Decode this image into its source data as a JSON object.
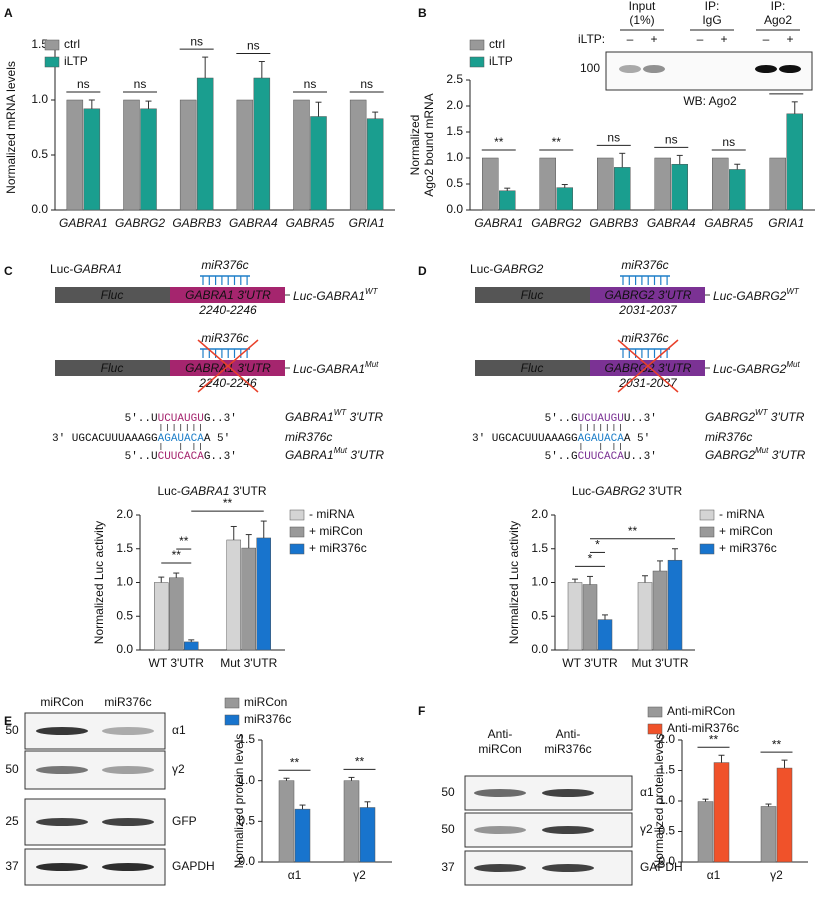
{
  "panels": {
    "labels": [
      "A",
      "B",
      "C",
      "D",
      "E",
      "F"
    ]
  },
  "chart_data": [
    {
      "type": "bar",
      "ylabel": [
        "Normalized mRNA levels"
      ],
      "categories": [
        "GABRA1",
        "GABRG2",
        "GABRB3",
        "GABRA4",
        "GABRA5",
        "GRIA1"
      ],
      "series": [
        {
          "name": "ctrl",
          "color": "#999999",
          "values": [
            1,
            1,
            1,
            1,
            1,
            1
          ]
        },
        {
          "name": "iLTP",
          "color": "#1a9e8f",
          "values": [
            0.92,
            0.92,
            1.2,
            1.2,
            0.85,
            0.83
          ],
          "errors": [
            0.08,
            0.07,
            0.19,
            0.15,
            0.13,
            0.06
          ]
        }
      ],
      "ylim": [
        0,
        1.5
      ],
      "yticks": [
        {
          "value": 0,
          "label": "0.0"
        },
        0.5,
        {
          "value": 1,
          "label": "1.0"
        },
        1.5
      ],
      "legend": "upper left",
      "significance": [
        "ns",
        "ns",
        "ns",
        "ns",
        "ns",
        "ns"
      ]
    },
    {
      "type": "bar",
      "ylabel": [
        "Normalized",
        "Ago2 bound mRNA"
      ],
      "categories": [
        "GABRA1",
        "GABRG2",
        "GABRB3",
        "GABRA4",
        "GABRA5",
        "GRIA1"
      ],
      "series": [
        {
          "name": "ctrl",
          "color": "#999999",
          "values": [
            1,
            1,
            1,
            1,
            1,
            1
          ]
        },
        {
          "name": "iLTP",
          "color": "#1a9e8f",
          "values": [
            0.37,
            0.43,
            0.82,
            0.88,
            0.78,
            1.85
          ],
          "errors": [
            0.05,
            0.06,
            0.27,
            0.17,
            0.1,
            0.23
          ]
        }
      ],
      "ylim": [
        0,
        2.5
      ],
      "yticks": [
        {
          "value": 0,
          "label": "0.0"
        },
        0.5,
        {
          "value": 1,
          "label": "1.0"
        },
        1.5,
        {
          "value": 2,
          "label": "2.0"
        },
        2.5
      ],
      "legend": "upper left",
      "significance": [
        "**",
        "**",
        "ns",
        "ns",
        "ns",
        "*"
      ]
    },
    {
      "type": "bar",
      "title": [
        "Luc-",
        "GABRA1",
        " 3'UTR"
      ],
      "ylabel": [
        "Normalized Luc activity"
      ],
      "categories": [
        "WT 3'UTR",
        "Mut 3'UTR"
      ],
      "series": [
        {
          "name": "- miRNA",
          "color": "#d4d4d4",
          "values": [
            1.0,
            1.63
          ],
          "errors": [
            0.08,
            0.2
          ]
        },
        {
          "name": "+ miRCon",
          "color": "#999999",
          "values": [
            1.07,
            1.51
          ],
          "errors": [
            0.07,
            0.2
          ]
        },
        {
          "name": "+ miR376c",
          "color": "#1874cd",
          "values": [
            0.12,
            1.66
          ],
          "errors": [
            0.03,
            0.25
          ]
        }
      ],
      "ylim": [
        0,
        2
      ],
      "yticks": [
        {
          "value": 0,
          "label": "0.0"
        },
        0.5,
        {
          "value": 1,
          "label": "1.0"
        },
        1.5,
        {
          "value": 2,
          "label": "2.0"
        }
      ],
      "legend": "right",
      "significance": [
        "**",
        "**",
        "**"
      ]
    },
    {
      "type": "bar",
      "title": [
        "Luc-",
        "GABRG2",
        " 3'UTR"
      ],
      "ylabel": [
        "Normalized Luc activity"
      ],
      "categories": [
        "WT 3'UTR",
        "Mut 3'UTR"
      ],
      "series": [
        {
          "name": "- miRNA",
          "color": "#d4d4d4",
          "values": [
            1.0,
            1.0
          ],
          "errors": [
            0.05,
            0.1
          ]
        },
        {
          "name": "+ miRCon",
          "color": "#999999",
          "values": [
            0.97,
            1.17
          ],
          "errors": [
            0.12,
            0.15
          ]
        },
        {
          "name": "+ miR376c",
          "color": "#1874cd",
          "values": [
            0.45,
            1.33
          ],
          "errors": [
            0.07,
            0.17
          ]
        }
      ],
      "ylim": [
        0,
        2
      ],
      "yticks": [
        {
          "value": 0,
          "label": "0.0"
        },
        0.5,
        {
          "value": 1,
          "label": "1.0"
        },
        1.5,
        {
          "value": 2,
          "label": "2.0"
        }
      ],
      "legend": "right",
      "significance": [
        "*",
        "*",
        "**"
      ]
    },
    {
      "type": "bar",
      "ylabel": [
        "Normalized protein levels"
      ],
      "categories": [
        "α1",
        "γ2"
      ],
      "series": [
        {
          "name": "miRCon",
          "color": "#999999",
          "values": [
            1.0,
            1.0
          ],
          "errors": [
            0.03,
            0.04
          ]
        },
        {
          "name": "miR376c",
          "color": "#1874cd",
          "values": [
            0.65,
            0.67
          ],
          "errors": [
            0.05,
            0.07
          ]
        }
      ],
      "ylim": [
        0,
        1.5
      ],
      "yticks": [
        {
          "value": 0,
          "label": "0.0"
        },
        0.5,
        {
          "value": 1,
          "label": "1.0"
        },
        1.5
      ],
      "legend": "upper left",
      "significance": [
        "**",
        "**"
      ]
    },
    {
      "type": "bar",
      "ylabel": [
        "Normalized protein levels"
      ],
      "categories": [
        "α1",
        "γ2"
      ],
      "series": [
        {
          "name": "Anti-miRCon",
          "color": "#999999",
          "values": [
            0.99,
            0.91
          ],
          "errors": [
            0.04,
            0.04
          ]
        },
        {
          "name": "Anti-miR376c",
          "color": "#f0522a",
          "values": [
            1.63,
            1.54
          ],
          "errors": [
            0.12,
            0.13
          ]
        }
      ],
      "ylim": [
        0,
        2
      ],
      "yticks": [
        {
          "value": 0,
          "label": "0.0"
        },
        0.5,
        {
          "value": 1,
          "label": "1.0"
        },
        1.5,
        {
          "value": 2,
          "label": "2.0"
        }
      ],
      "legend": "upper left",
      "significance": [
        "**",
        "**"
      ]
    }
  ],
  "blot_b": {
    "lanes": [
      [
        "Input",
        "(1%)"
      ],
      [
        "IP:",
        "IgG"
      ],
      [
        "IP:",
        "Ago2"
      ]
    ],
    "treatment": "iLTP:",
    "signs": [
      "–",
      "+",
      "–",
      "+",
      "–",
      "+"
    ],
    "mw": "100",
    "antibody": "WB: Ago2"
  },
  "constructs": [
    {
      "title": [
        "Luc-",
        "GABRA1"
      ],
      "color": "#a5256e",
      "mirna": "miR376c",
      "fluc": "Fluc",
      "utr": "GABRA1 3'UTR",
      "site": "2240-2246",
      "labels": [
        [
          "Luc-GABRA1",
          "WT"
        ],
        [
          "Luc-GABRA1",
          "Mut"
        ]
      ],
      "alignment": {
        "wt": [
          "5'..U",
          "UCUAUGU",
          "G..3'"
        ],
        "mirna": [
          "3' UGCACUUUAAAGG",
          "AGAUACA",
          "A 5'"
        ],
        "mut": [
          "5'..U",
          "CUUCACA",
          "G..3'"
        ]
      },
      "alignment_labels": [
        [
          "GABRA1",
          "WT",
          " 3'UTR"
        ],
        [
          "GABRA1",
          "Mut",
          " 3'UTR"
        ]
      ]
    },
    {
      "title": [
        "Luc-",
        "GABRG2"
      ],
      "color": "#7b3294",
      "mirna": "miR376c",
      "fluc": "Fluc",
      "utr": "GABRG2 3'UTR",
      "site": "2031-2037",
      "labels": [
        [
          "Luc-GABRG2",
          "WT"
        ],
        [
          "Luc-GABRG2",
          "Mut"
        ]
      ],
      "alignment": {
        "wt": [
          "5'..G",
          "UCUAUGU",
          "U..3'"
        ],
        "mirna": [
          "3' UGCACUUUAAAGG",
          "AGAUACA",
          "A 5'"
        ],
        "mut": [
          "5'..G",
          "CUUCACA",
          "U..3'"
        ]
      },
      "alignment_labels": [
        [
          "GABRG2",
          "WT",
          " 3'UTR"
        ],
        [
          "GABRG2",
          "Mut",
          " 3'UTR"
        ]
      ]
    }
  ],
  "blot_e": {
    "lanes": [
      [
        "miRCon"
      ],
      [
        "miR376c"
      ]
    ],
    "rows": [
      {
        "mw": "50",
        "label": "α1"
      },
      {
        "mw": "50",
        "label": "γ2"
      },
      {
        "mw": "25",
        "label": "GFP"
      },
      {
        "mw": "37",
        "label": "GAPDH"
      }
    ]
  },
  "blot_f": {
    "lanes": [
      [
        "Anti-",
        "miRCon"
      ],
      [
        "Anti-",
        "miR376c"
      ]
    ],
    "rows": [
      {
        "mw": "50",
        "label": "α1"
      },
      {
        "mw": "50",
        "label": "γ2"
      },
      {
        "mw": "37",
        "label": "GAPDH"
      }
    ]
  }
}
